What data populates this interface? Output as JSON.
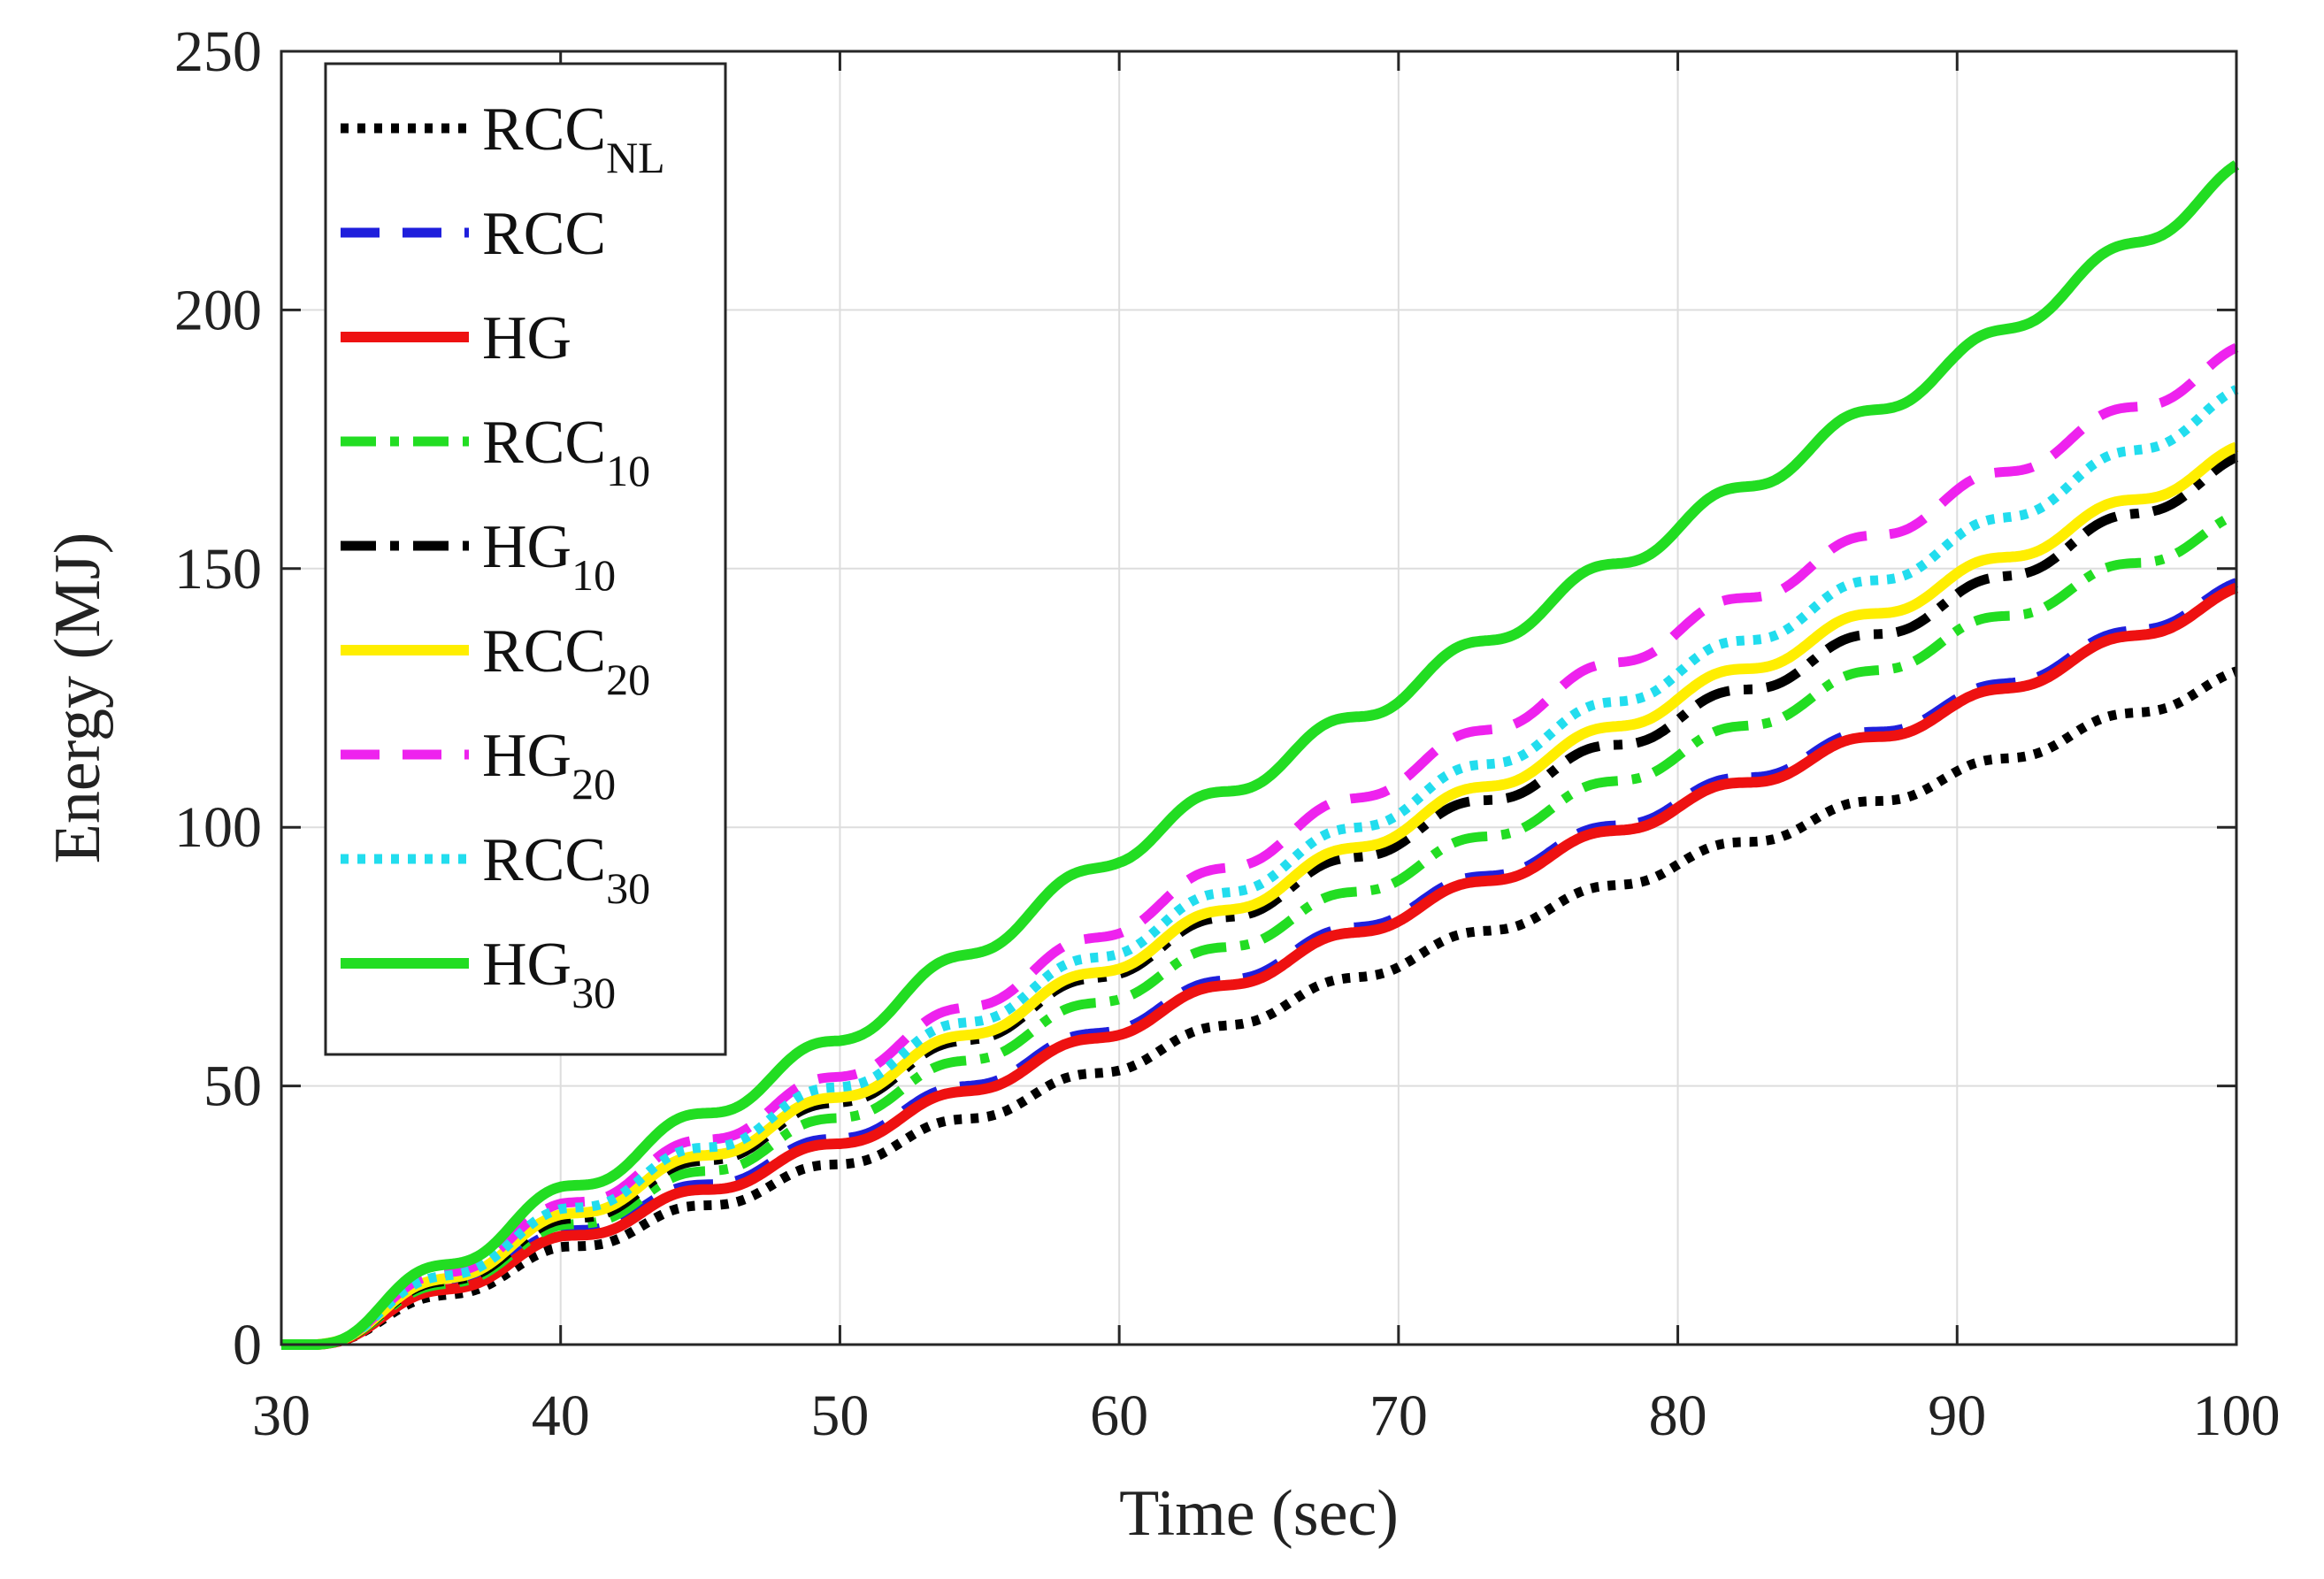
{
  "chart_data": {
    "type": "line",
    "title": "",
    "xlabel": "Time (sec)",
    "ylabel": "Energy (MJ)",
    "xlim": [
      30,
      100
    ],
    "ylim": [
      0,
      250
    ],
    "xticks": [
      30,
      40,
      50,
      60,
      70,
      80,
      90,
      100
    ],
    "yticks": [
      0,
      50,
      100,
      150,
      200,
      250
    ],
    "grid": true,
    "legend_position": "top-left",
    "step_period_sec": 4.65,
    "x_start": 31.3,
    "series": [
      {
        "name": "RCC",
        "subscript": "NL",
        "color": "#000000",
        "style": "dotted",
        "x": [
          30,
          31.3,
          40,
          50,
          60,
          70,
          80,
          90,
          100
        ],
        "values": [
          0,
          0,
          18,
          35,
          54,
          74,
          93,
          110,
          129
        ]
      },
      {
        "name": "RCC",
        "subscript": "",
        "color": "#1f1fdc",
        "style": "dashed",
        "x": [
          30,
          31.3,
          40,
          50,
          60,
          70,
          80,
          90,
          100
        ],
        "values": [
          0,
          0,
          21,
          40,
          62,
          84,
          105,
          124,
          146
        ]
      },
      {
        "name": "HG",
        "subscript": "",
        "color": "#ee1111",
        "style": "solid",
        "x": [
          30,
          31.3,
          40,
          50,
          60,
          70,
          80,
          90,
          100
        ],
        "values": [
          0,
          0,
          20,
          39,
          61,
          83,
          104,
          123,
          145
        ]
      },
      {
        "name": "RCC",
        "subscript": "10",
        "color": "#22dd22",
        "style": "dashdot",
        "x": [
          30,
          31.3,
          40,
          50,
          60,
          70,
          80,
          90,
          100
        ],
        "values": [
          0,
          0,
          22,
          44,
          68,
          91,
          114,
          137,
          159
        ]
      },
      {
        "name": "HG",
        "subscript": "10",
        "color": "#000000",
        "style": "dashdot",
        "x": [
          30,
          31.3,
          40,
          50,
          60,
          70,
          80,
          90,
          100
        ],
        "values": [
          0,
          0,
          23,
          47,
          73,
          98,
          121,
          144,
          170
        ]
      },
      {
        "name": "RCC",
        "subscript": "20",
        "color": "#ffee00",
        "style": "solid",
        "x": [
          30,
          31.3,
          40,
          50,
          60,
          70,
          80,
          90,
          100
        ],
        "values": [
          0,
          0,
          24,
          48,
          74,
          100,
          125,
          148,
          172
        ]
      },
      {
        "name": "HG",
        "subscript": "20",
        "color": "#ee22ee",
        "style": "dashed",
        "x": [
          30,
          31.3,
          40,
          50,
          60,
          70,
          80,
          90,
          100
        ],
        "values": [
          0,
          0,
          26,
          52,
          81,
          110,
          138,
          164,
          191
        ]
      },
      {
        "name": "RCC",
        "subscript": "30",
        "color": "#22ddee",
        "style": "dotted",
        "x": [
          30,
          31.3,
          40,
          50,
          60,
          70,
          80,
          90,
          100
        ],
        "values": [
          0,
          0,
          25,
          50,
          77,
          104,
          130,
          155,
          183
        ]
      },
      {
        "name": "HG",
        "subscript": "30",
        "color": "#22dd22",
        "style": "solid",
        "x": [
          30,
          31.3,
          40,
          50,
          60,
          70,
          80,
          90,
          100
        ],
        "values": [
          0,
          0,
          29,
          59,
          95,
          126,
          158,
          190,
          226
        ]
      }
    ]
  }
}
